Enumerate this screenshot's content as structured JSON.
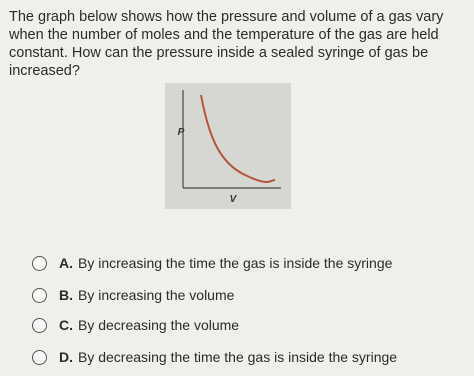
{
  "question": "The graph below shows how the pressure and volume of a gas vary when the number of moles and the temperature of the gas are held constant. How can the pressure inside a sealed syringe of gas be increased?",
  "graph": {
    "y_label": "P",
    "x_label": "V"
  },
  "options": [
    {
      "letter": "A.",
      "text": "By increasing the time the gas is inside the syringe"
    },
    {
      "letter": "B.",
      "text": "By increasing the volume"
    },
    {
      "letter": "C.",
      "text": "By decreasing the volume"
    },
    {
      "letter": "D.",
      "text": "By decreasing the time the gas is inside the syringe"
    }
  ]
}
